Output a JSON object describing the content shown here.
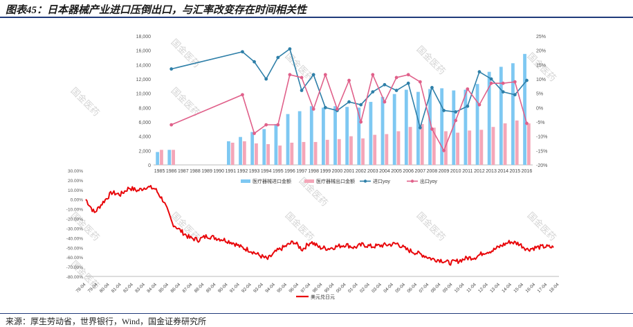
{
  "title": "图表45：日本器械产业进口压倒出口，与汇率改变存在时间相关性",
  "source": "来源：厚生劳动省，世界银行，Wind，国金证券研究所",
  "watermark": "国金医药",
  "colors": {
    "import_bar": "#7ec8f2",
    "export_bar": "#f4a6b8",
    "import_line": "#2e7fa8",
    "export_line": "#e0608a",
    "fx_line": "#e8060a",
    "rule": "#1f3a7a"
  },
  "chart_data": [
    {
      "type": "bar",
      "combo_with": "line",
      "categories": [
        "1985",
        "1986",
        "1987",
        "1988",
        "1989",
        "1990",
        "1991",
        "1992",
        "1993",
        "1994",
        "1995",
        "1996",
        "1997",
        "1998",
        "1999",
        "2000",
        "2001",
        "2002",
        "2003",
        "2004",
        "2005",
        "2006",
        "2007",
        "2008",
        "2009",
        "2010",
        "2011",
        "2012",
        "2013",
        "2014",
        "2015",
        "2016"
      ],
      "series": [
        {
          "name": "医疗器械进口金额",
          "axis": "left",
          "kind": "bar",
          "values": [
            1800,
            2100,
            null,
            null,
            null,
            null,
            3300,
            3900,
            4600,
            5000,
            5700,
            7100,
            7500,
            8200,
            8000,
            8200,
            8100,
            8000,
            8800,
            9500,
            9900,
            10500,
            10200,
            10600,
            10700,
            10400,
            10500,
            11300,
            13000,
            13700,
            14200,
            15500
          ]
        },
        {
          "name": "医疗器械出口金额",
          "axis": "left",
          "kind": "bar",
          "values": [
            2100,
            2100,
            null,
            null,
            null,
            null,
            3100,
            3300,
            3000,
            2900,
            2700,
            3100,
            3200,
            3200,
            3500,
            3600,
            4000,
            3700,
            4200,
            4300,
            4700,
            5300,
            5700,
            5200,
            4700,
            4500,
            4800,
            4900,
            5300,
            5800,
            6200,
            5800
          ]
        },
        {
          "name": "进口yoy",
          "axis": "right",
          "kind": "line",
          "unit": "%",
          "values": [
            null,
            13.5,
            null,
            null,
            null,
            null,
            null,
            19.5,
            16,
            10,
            17.5,
            20.5,
            6,
            11.5,
            0,
            -1,
            2,
            1,
            5.5,
            8,
            6,
            8.5,
            -7,
            7,
            -1,
            -1.5,
            0.5,
            12.5,
            10,
            5.5,
            4.5,
            9.5
          ]
        },
        {
          "name": "出口yoy",
          "axis": "right",
          "kind": "line",
          "unit": "%",
          "values": [
            null,
            -6,
            null,
            null,
            null,
            null,
            null,
            4.5,
            -9,
            -6,
            -6,
            11.5,
            10.5,
            -0.5,
            11.5,
            -0.5,
            9.5,
            -5,
            11.5,
            2,
            10.5,
            11.5,
            9,
            -7.5,
            -15,
            -4.5,
            6.5,
            1,
            8.5,
            8.5,
            9,
            -5.5
          ]
        }
      ],
      "ylim_left": [
        0,
        18000
      ],
      "yticks_left": [
        "0",
        "2,000",
        "4,000",
        "6,000",
        "8,000",
        "10,000",
        "12,000",
        "14,000",
        "16,000",
        "18,000"
      ],
      "ylim_right": [
        -20,
        25
      ],
      "yticks_right": [
        "-20%",
        "-15%",
        "-10%",
        "-5%",
        "0%",
        "5%",
        "10%",
        "15%",
        "20%",
        "25%"
      ],
      "legend": [
        "医疗器械进口金额",
        "医疗器械出口金额",
        "进口yoy",
        "出口yoy"
      ],
      "legend_position": "bottom",
      "grid": false
    },
    {
      "type": "line",
      "x_ticks": [
        "78-04",
        "79-04",
        "80-04",
        "81-04",
        "82-04",
        "83-04",
        "84-04",
        "85-04",
        "86-04",
        "87-04",
        "88-04",
        "89-04",
        "90-04",
        "91-04",
        "92-04",
        "93-04",
        "94-04",
        "95-04",
        "96-04",
        "97-04",
        "98-04",
        "99-04",
        "00-04",
        "01-04",
        "02-04",
        "03-04",
        "04-04",
        "05-04",
        "06-04",
        "07-04",
        "08-04",
        "09-04",
        "10-04",
        "11-04",
        "12-04",
        "13-04",
        "14-04",
        "15-04",
        "16-04",
        "17-04",
        "18-04"
      ],
      "series": [
        {
          "name": "美元兑日元",
          "unit": "%",
          "monthly_anchor_values": [
            0,
            -14,
            -3,
            7,
            5,
            12,
            9,
            13,
            11,
            -2,
            -25,
            -33,
            -40,
            -42,
            -38,
            -40,
            -42,
            -45,
            -50,
            -53,
            -58,
            -62,
            -54,
            -49,
            -44,
            -52,
            -44,
            -50,
            -51,
            -49,
            -47,
            -50,
            -47,
            -49,
            -48,
            -47,
            -46,
            -52,
            -55,
            -58,
            -62,
            -63,
            -66,
            -64,
            -61,
            -60,
            -55,
            -53,
            -48,
            -44,
            -46,
            -52,
            -50,
            -49,
            -50
          ]
        }
      ],
      "ylim": [
        -80,
        30
      ],
      "yticks": [
        "-80.00%",
        "-70.00%",
        "-60.00%",
        "-50.00%",
        "-40.00%",
        "-30.00%",
        "-20.00%",
        "-10.00%",
        "0.00%",
        "10.00%",
        "20.00%",
        "30.00%"
      ],
      "legend": [
        "美元兑日元"
      ],
      "legend_position": "bottom",
      "grid": false
    }
  ]
}
